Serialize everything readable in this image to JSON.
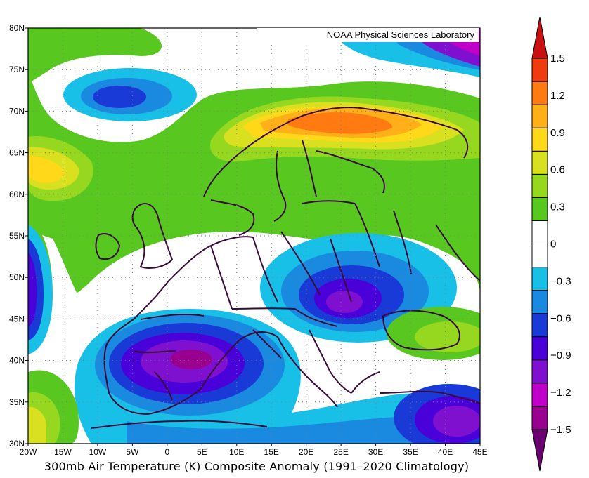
{
  "credit": "NOAA Physical Sciences Laboratory",
  "caption": "300mb Air Temperature (K) Composite Anomaly (1991–2020 Climatology)",
  "colors": {
    "levels": [
      "#6a0070",
      "#9a0090",
      "#c000c8",
      "#8010d0",
      "#4a00d8",
      "#1a3ad8",
      "#1a8ae0",
      "#18c0e8",
      "#ffffff",
      "#ffffff",
      "#58c820",
      "#96d820",
      "#d8e020",
      "#ffd81a",
      "#ffb018",
      "#ff7a10",
      "#f03a10",
      "#c81010"
    ],
    "land": "#ffffff",
    "border": "#3a0a3a"
  },
  "map": {
    "lon_range": [
      -20,
      45
    ],
    "lat_range": [
      30,
      80
    ],
    "x_ticks": [
      "20W",
      "15W",
      "10W",
      "5W",
      "0",
      "5E",
      "10E",
      "15E",
      "20E",
      "25E",
      "30E",
      "35E",
      "40E",
      "45E"
    ],
    "y_ticks": [
      "30N",
      "35N",
      "40N",
      "45N",
      "50N",
      "55N",
      "60N",
      "65N",
      "70N",
      "75N",
      "80N"
    ]
  },
  "colorbar": {
    "labels": [
      "1.5",
      "1.2",
      "0.9",
      "0.6",
      "0.3",
      "0",
      "−0.3",
      "−0.6",
      "−0.9",
      "−1.2",
      "−1.5"
    ]
  }
}
